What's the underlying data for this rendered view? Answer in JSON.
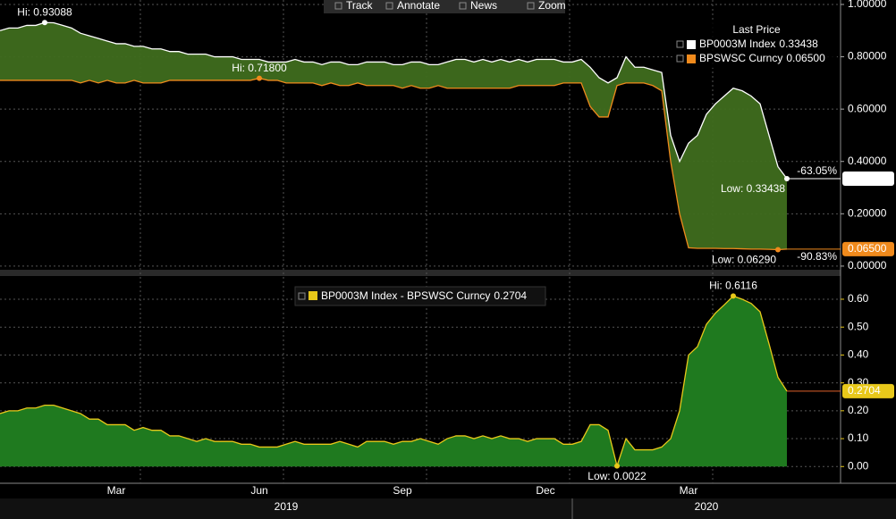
{
  "toolbar": [
    "Track",
    "Annotate",
    "News",
    "Zoom"
  ],
  "chart_data": [
    {
      "type": "band",
      "legend_title": "Last Price",
      "fill": "#3f6d1e",
      "ylim": [
        -0.014,
        1.017
      ],
      "yticks": [
        {
          "value": 1,
          "label": "1.00000"
        },
        {
          "value": 0.8,
          "label": "0.80000"
        },
        {
          "value": 0.6,
          "label": "0.60000"
        },
        {
          "value": 0.4,
          "label": "0.40000"
        },
        {
          "value": 0.2,
          "label": "0.20000"
        },
        {
          "value": 0,
          "label": "0.00000"
        }
      ],
      "grid": true,
      "series": [
        {
          "name": "BP0003M Index",
          "color": "#ffffff",
          "last_label": "0.33438",
          "hi_label": "Hi: 0.93088",
          "low_label": "Low: 0.33438",
          "change_label": "-63.05%",
          "values": [
            0.9,
            0.91,
            0.91,
            0.92,
            0.92,
            0.93088,
            0.93,
            0.92,
            0.91,
            0.89,
            0.88,
            0.87,
            0.86,
            0.85,
            0.85,
            0.84,
            0.84,
            0.83,
            0.83,
            0.82,
            0.82,
            0.81,
            0.81,
            0.81,
            0.8,
            0.8,
            0.8,
            0.79,
            0.79,
            0.79,
            0.78,
            0.78,
            0.78,
            0.79,
            0.78,
            0.78,
            0.77,
            0.78,
            0.78,
            0.77,
            0.77,
            0.78,
            0.78,
            0.78,
            0.77,
            0.77,
            0.78,
            0.78,
            0.77,
            0.77,
            0.78,
            0.79,
            0.79,
            0.78,
            0.79,
            0.78,
            0.79,
            0.78,
            0.79,
            0.78,
            0.79,
            0.79,
            0.79,
            0.78,
            0.78,
            0.79,
            0.76,
            0.72,
            0.7,
            0.72,
            0.8,
            0.76,
            0.76,
            0.75,
            0.74,
            0.5,
            0.4,
            0.47,
            0.5,
            0.58,
            0.62,
            0.65,
            0.68,
            0.67,
            0.65,
            0.62,
            0.5,
            0.38,
            0.33438,
            null,
            null,
            null,
            null,
            null
          ]
        },
        {
          "name": "BPSWSC Curncy",
          "color": "#f08a1c",
          "last_label": "0.06500",
          "hi_label": "Hi: 0.71800",
          "low_label": "Low: 0.06290",
          "change_label": "-90.83%",
          "values": [
            0.71,
            0.71,
            0.71,
            0.71,
            0.71,
            0.71,
            0.71,
            0.71,
            0.71,
            0.7,
            0.71,
            0.7,
            0.71,
            0.7,
            0.7,
            0.71,
            0.7,
            0.7,
            0.7,
            0.71,
            0.71,
            0.71,
            0.71,
            0.71,
            0.71,
            0.71,
            0.71,
            0.71,
            0.71,
            0.718,
            0.71,
            0.71,
            0.7,
            0.7,
            0.7,
            0.7,
            0.69,
            0.7,
            0.69,
            0.69,
            0.7,
            0.69,
            0.69,
            0.69,
            0.69,
            0.68,
            0.69,
            0.68,
            0.68,
            0.69,
            0.68,
            0.68,
            0.68,
            0.68,
            0.68,
            0.68,
            0.68,
            0.68,
            0.69,
            0.69,
            0.69,
            0.69,
            0.69,
            0.7,
            0.7,
            0.7,
            0.61,
            0.57,
            0.57,
            0.69,
            0.7,
            0.7,
            0.7,
            0.69,
            0.67,
            0.4,
            0.2,
            0.07,
            0.068,
            0.068,
            0.068,
            0.067,
            0.067,
            0.066,
            0.065,
            0.065,
            0.064,
            0.0629,
            0.065,
            null,
            null,
            null,
            null,
            null
          ]
        }
      ]
    },
    {
      "type": "area",
      "fill": "#1f7a1f",
      "ylim": [
        -0.06,
        0.68
      ],
      "yticks": [
        {
          "value": 0.6,
          "label": "0.60"
        },
        {
          "value": 0.5,
          "label": "0.50"
        },
        {
          "value": 0.4,
          "label": "0.40"
        },
        {
          "value": 0.3,
          "label": "0.30"
        },
        {
          "value": 0.2,
          "label": "0.20"
        },
        {
          "value": 0.1,
          "label": "0.10"
        },
        {
          "value": 0,
          "label": "0.00"
        }
      ],
      "grid": true,
      "categories": [
        null,
        null,
        null,
        null,
        null,
        null,
        null,
        null,
        null,
        null,
        null,
        null,
        null,
        "Mar",
        null,
        null,
        null,
        null,
        null,
        null,
        null,
        null,
        null,
        null,
        null,
        null,
        null,
        null,
        null,
        "Jun",
        null,
        null,
        null,
        null,
        null,
        null,
        null,
        null,
        null,
        null,
        null,
        null,
        null,
        null,
        null,
        "Sep",
        null,
        null,
        null,
        null,
        null,
        null,
        null,
        null,
        null,
        null,
        null,
        null,
        null,
        null,
        null,
        "Dec",
        null,
        null,
        null,
        null,
        null,
        null,
        null,
        null,
        null,
        null,
        null,
        null,
        null,
        null,
        null,
        "Mar",
        null,
        null,
        null,
        null,
        null,
        null,
        null,
        null,
        null,
        null,
        null,
        null,
        null,
        null,
        null,
        null
      ],
      "x_groups": [
        "2019",
        "2020"
      ],
      "series": [
        {
          "name": "BP0003M Index - BPSWSC Curncy",
          "color": "#e8c81a",
          "last_label": "0.2704",
          "hi_label": "Hi: 0.6116",
          "low_label": "Low: 0.0022",
          "values": [
            0.19,
            0.2,
            0.2,
            0.21,
            0.21,
            0.22,
            0.22,
            0.21,
            0.2,
            0.19,
            0.17,
            0.17,
            0.15,
            0.15,
            0.15,
            0.13,
            0.14,
            0.13,
            0.13,
            0.11,
            0.11,
            0.1,
            0.09,
            0.1,
            0.09,
            0.09,
            0.09,
            0.08,
            0.08,
            0.07,
            0.07,
            0.07,
            0.08,
            0.09,
            0.08,
            0.08,
            0.08,
            0.08,
            0.09,
            0.08,
            0.07,
            0.09,
            0.09,
            0.09,
            0.08,
            0.09,
            0.09,
            0.1,
            0.09,
            0.08,
            0.1,
            0.11,
            0.11,
            0.1,
            0.11,
            0.1,
            0.11,
            0.1,
            0.1,
            0.09,
            0.1,
            0.1,
            0.1,
            0.08,
            0.08,
            0.09,
            0.15,
            0.15,
            0.13,
            0.0022,
            0.1,
            0.06,
            0.06,
            0.06,
            0.07,
            0.1,
            0.2,
            0.4,
            0.43,
            0.51,
            0.55,
            0.58,
            0.6116,
            0.6,
            0.585,
            0.555,
            0.44,
            0.32,
            0.2704,
            null,
            null,
            null,
            null,
            null
          ]
        }
      ]
    }
  ]
}
